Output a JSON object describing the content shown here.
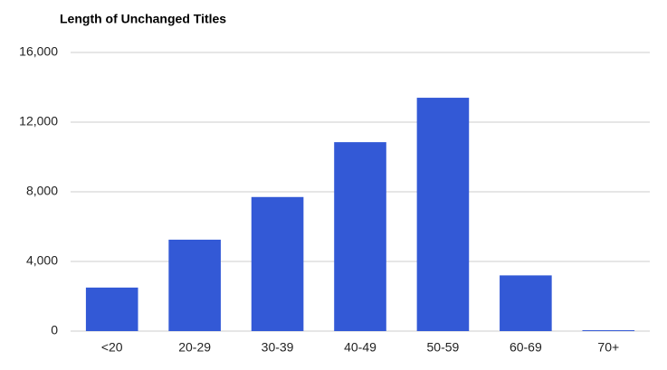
{
  "chart_data": {
    "type": "bar",
    "title": "Length of Unchanged Titles",
    "categories": [
      "<20",
      "20-29",
      "30-39",
      "40-49",
      "50-59",
      "60-69",
      "70+"
    ],
    "values": [
      2500,
      5250,
      7700,
      10850,
      13400,
      3200,
      50
    ],
    "color": "#3359d6",
    "ylim": [
      0,
      16000
    ],
    "yticks": [
      0,
      {
        "value": 4000,
        "label": "4,000"
      },
      {
        "value": 8000,
        "label": "8,000"
      },
      {
        "value": 12000,
        "label": "12,000"
      },
      {
        "value": 16000,
        "label": "16,000"
      }
    ],
    "grid": true
  }
}
